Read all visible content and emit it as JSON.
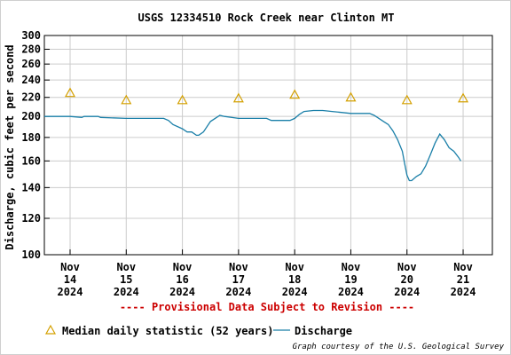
{
  "chart_data": {
    "type": "line",
    "title": "USGS 12334510 Rock Creek near Clinton MT",
    "ylabel": "Discharge, cubic feet per second",
    "y_scale": "log",
    "ylim": [
      100,
      300
    ],
    "y_ticks": [
      100,
      120,
      140,
      160,
      180,
      200,
      220,
      240,
      260,
      280,
      300
    ],
    "x_ticks": [
      {
        "date": "2024-11-14",
        "label": [
          "Nov",
          "14",
          "2024"
        ]
      },
      {
        "date": "2024-11-15",
        "label": [
          "Nov",
          "15",
          "2024"
        ]
      },
      {
        "date": "2024-11-16",
        "label": [
          "Nov",
          "16",
          "2024"
        ]
      },
      {
        "date": "2024-11-17",
        "label": [
          "Nov",
          "17",
          "2024"
        ]
      },
      {
        "date": "2024-11-18",
        "label": [
          "Nov",
          "18",
          "2024"
        ]
      },
      {
        "date": "2024-11-19",
        "label": [
          "Nov",
          "19",
          "2024"
        ]
      },
      {
        "date": "2024-11-20",
        "label": [
          "Nov",
          "20",
          "2024"
        ]
      },
      {
        "date": "2024-11-21",
        "label": [
          "Nov",
          "21",
          "2024"
        ]
      }
    ],
    "xlim": [
      "2024-11-13T13:00",
      "2024-11-21T12:30"
    ],
    "grid": true,
    "colors": {
      "discharge": "#1a7fa8",
      "median": "#d4a000",
      "provisional": "#cc0000",
      "grid": "#cccccc"
    },
    "series": [
      {
        "name": "Median daily statistic (52 years)",
        "marker": "triangle",
        "x": [
          "2024-11-14T00:00",
          "2024-11-15T00:00",
          "2024-11-16T00:00",
          "2024-11-17T00:00",
          "2024-11-18T00:00",
          "2024-11-19T00:00",
          "2024-11-20T00:00",
          "2024-11-21T00:00"
        ],
        "y": [
          225,
          217,
          217,
          219,
          223,
          220,
          217,
          219
        ]
      },
      {
        "name": "Discharge",
        "marker": "line",
        "x": [
          "2024-11-13T13:00",
          "2024-11-14T00:00",
          "2024-11-14T05:00",
          "2024-11-14T06:00",
          "2024-11-14T12:00",
          "2024-11-14T13:00",
          "2024-11-15T00:00",
          "2024-11-15T12:00",
          "2024-11-15T16:00",
          "2024-11-15T18:00",
          "2024-11-15T20:00",
          "2024-11-16T00:00",
          "2024-11-16T02:00",
          "2024-11-16T04:00",
          "2024-11-16T06:00",
          "2024-11-16T07:00",
          "2024-11-16T09:00",
          "2024-11-16T12:00",
          "2024-11-16T16:00",
          "2024-11-16T18:00",
          "2024-11-17T00:00",
          "2024-11-17T12:00",
          "2024-11-17T14:00",
          "2024-11-17T22:00",
          "2024-11-18T00:00",
          "2024-11-18T02:00",
          "2024-11-18T04:00",
          "2024-11-18T08:00",
          "2024-11-18T12:00",
          "2024-11-18T16:00",
          "2024-11-18T20:00",
          "2024-11-19T00:00",
          "2024-11-19T04:00",
          "2024-11-19T08:00",
          "2024-11-19T10:00",
          "2024-11-19T12:00",
          "2024-11-19T14:00",
          "2024-11-19T16:00",
          "2024-11-19T18:00",
          "2024-11-19T20:00",
          "2024-11-19T22:00",
          "2024-11-19T23:00",
          "2024-11-20T00:00",
          "2024-11-20T01:00",
          "2024-11-20T02:00",
          "2024-11-20T04:00",
          "2024-11-20T06:00",
          "2024-11-20T08:00",
          "2024-11-20T10:00",
          "2024-11-20T12:00",
          "2024-11-20T14:00",
          "2024-11-20T16:00",
          "2024-11-20T18:00",
          "2024-11-20T20:00",
          "2024-11-20T22:00",
          "2024-11-20T23:00"
        ],
        "y": [
          200,
          200,
          199,
          200,
          200,
          199,
          198,
          198,
          198,
          196,
          192,
          188,
          185,
          185,
          182,
          182,
          185,
          195,
          201,
          200,
          198,
          198,
          196,
          196,
          198,
          202,
          205,
          206,
          206,
          205,
          204,
          203,
          203,
          203,
          201,
          198,
          195,
          192,
          186,
          178,
          168,
          158,
          149,
          145,
          145,
          148,
          150,
          156,
          165,
          175,
          183,
          178,
          171,
          168,
          163,
          160
        ]
      }
    ],
    "provisional_note": "---- Provisional Data Subject to Revision ----",
    "legend": {
      "placement": "bottom"
    },
    "credit": "Graph courtesy of the U.S. Geological Survey"
  }
}
